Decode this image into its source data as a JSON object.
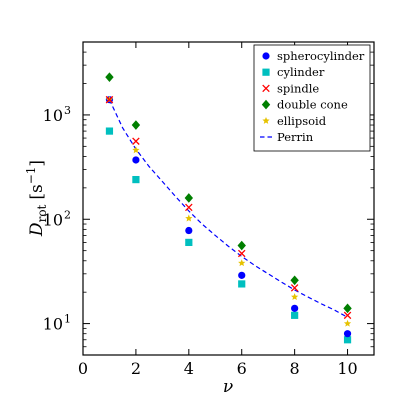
{
  "chart_data": {
    "type": "scatter",
    "xlabel": "ν",
    "ylabel": {
      "main": "D",
      "subscript": "rot",
      "unit": "[s",
      "unit_exp": "−1",
      "unit_close": "]"
    },
    "xlim": [
      0,
      11
    ],
    "ylim": [
      5,
      5000
    ],
    "yscale": "log",
    "xticks": [
      0,
      2,
      4,
      6,
      8,
      10
    ],
    "yticks": [
      {
        "base": "10",
        "exp": "1",
        "value": 10
      },
      {
        "base": "10",
        "exp": "2",
        "value": 100
      },
      {
        "base": "10",
        "exp": "3",
        "value": 1000
      }
    ],
    "legend": "top-right",
    "series": [
      {
        "name": "spherocylinder",
        "marker": "circle",
        "color": "#0000ff",
        "x": [
          1,
          2,
          4,
          6,
          8,
          10
        ],
        "y": [
          1400,
          370,
          78,
          29,
          14,
          8
        ]
      },
      {
        "name": "cylinder",
        "marker": "square",
        "color": "#00bfbf",
        "x": [
          1,
          2,
          4,
          6,
          8,
          10
        ],
        "y": [
          700,
          240,
          60,
          24,
          12,
          7
        ]
      },
      {
        "name": "spindle",
        "marker": "x",
        "color": "#ff0000",
        "x": [
          1,
          2,
          4,
          6,
          8,
          10
        ],
        "y": [
          1400,
          560,
          130,
          47,
          22,
          12
        ]
      },
      {
        "name": "double cone",
        "marker": "diamond",
        "color": "#007f00",
        "x": [
          1,
          2,
          4,
          6,
          8,
          10
        ],
        "y": [
          2300,
          800,
          160,
          56,
          26,
          14
        ]
      },
      {
        "name": "ellipsoid",
        "marker": "star",
        "color": "#e6c200",
        "x": [
          1,
          2,
          4,
          6,
          8,
          10
        ],
        "y": [
          1400,
          460,
          102,
          38,
          18,
          10
        ]
      },
      {
        "name": "Perrin",
        "marker": "dashed-line",
        "color": "#0000ff",
        "x": [
          1,
          1.5,
          2,
          2.5,
          3,
          3.5,
          4,
          4.5,
          5,
          5.5,
          6,
          6.5,
          7,
          7.5,
          8,
          8.5,
          9,
          9.5,
          10
        ],
        "y": [
          1400,
          750,
          470,
          320,
          230,
          165,
          120,
          90,
          70,
          55,
          44,
          36,
          30,
          25,
          21,
          18,
          15.5,
          13.5,
          11.5
        ]
      }
    ]
  }
}
